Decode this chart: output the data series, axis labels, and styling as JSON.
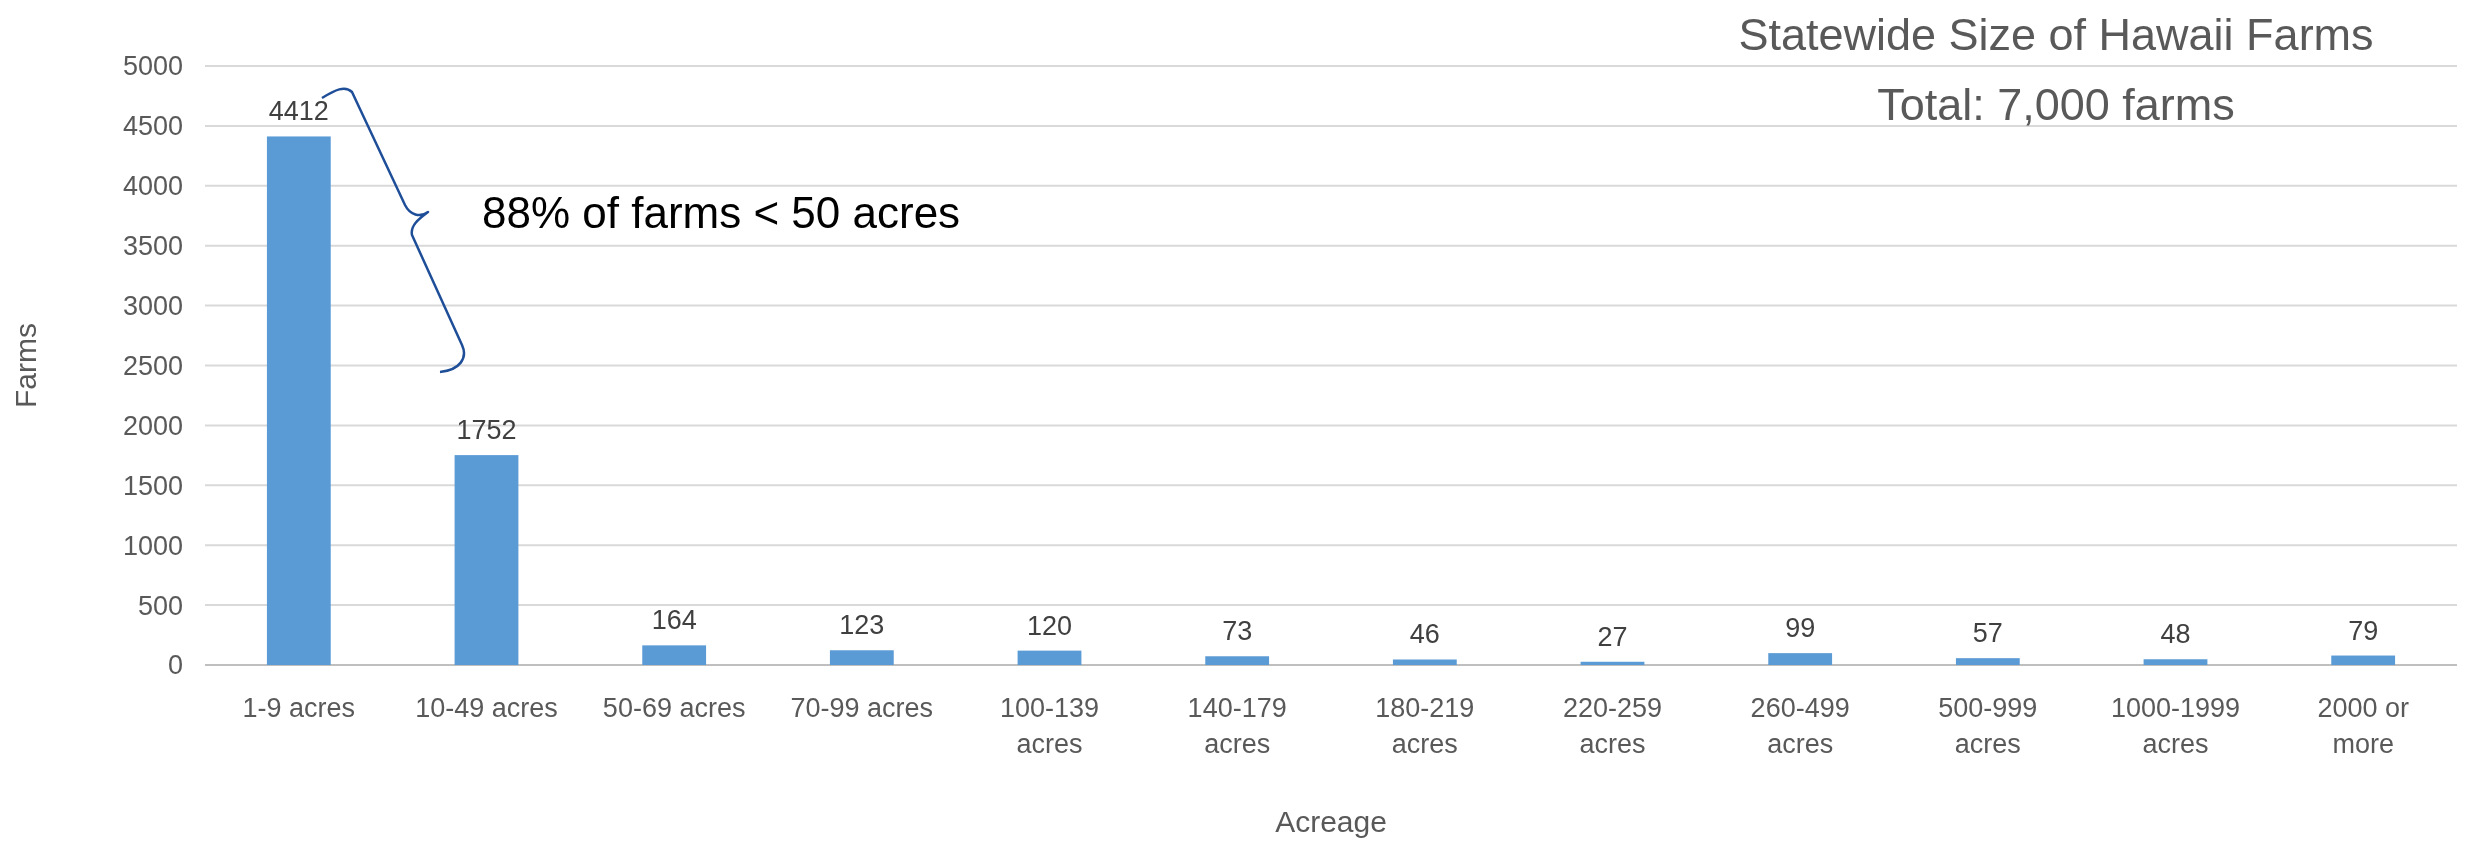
{
  "chart_data": {
    "type": "bar",
    "title": "Statewide Size of Hawaii Farms",
    "subtitle": "Total: 7,000 farms",
    "xlabel": "Acreage",
    "ylabel": "Farms",
    "categories": [
      "1-9 acres",
      "10-49 acres",
      "50-69 acres",
      "70-99 acres",
      "100-139 acres",
      "140-179 acres",
      "180-219 acres",
      "220-259 acres",
      "260-499 acres",
      "500-999 acres",
      "1000-1999 acres",
      "2000 or more"
    ],
    "values": [
      4412,
      1752,
      164,
      123,
      120,
      73,
      46,
      27,
      99,
      57,
      48,
      79
    ],
    "color": "#5b9bd5",
    "ylim": [
      0,
      5000
    ],
    "yticks": [
      0,
      500,
      1000,
      1500,
      2000,
      2500,
      3000,
      3500,
      4000,
      4500,
      5000
    ],
    "grid": "y",
    "data_labels": true,
    "annotations": [
      "88% of farms < 50 acres"
    ]
  }
}
